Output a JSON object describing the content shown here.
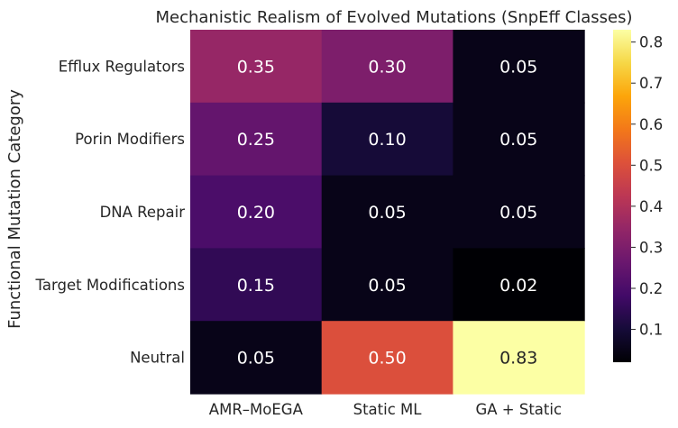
{
  "chart_data": {
    "type": "heatmap",
    "title": "Mechanistic Realism of Evolved Mutations (SnpEff Classes)",
    "xlabel": "",
    "ylabel": "Functional Mutation Category",
    "columns": [
      "AMR–MoEGA",
      "Static ML",
      "GA + Static"
    ],
    "rows": [
      "Efflux Regulators",
      "Porin Modifiers",
      "DNA Repair",
      "Target Modifications",
      "Neutral"
    ],
    "values": [
      [
        0.35,
        0.3,
        0.05
      ],
      [
        0.25,
        0.1,
        0.05
      ],
      [
        0.2,
        0.05,
        0.05
      ],
      [
        0.15,
        0.05,
        0.02
      ],
      [
        0.05,
        0.5,
        0.83
      ]
    ],
    "value_labels": [
      [
        "0.35",
        "0.30",
        "0.05"
      ],
      [
        "0.25",
        "0.10",
        "0.05"
      ],
      [
        "0.20",
        "0.05",
        "0.05"
      ],
      [
        "0.15",
        "0.05",
        "0.02"
      ],
      [
        "0.05",
        "0.50",
        "0.83"
      ]
    ],
    "colormap": "inferno",
    "colorbar": {
      "range": [
        0.02,
        0.83
      ],
      "ticks": [
        0.1,
        0.2,
        0.3,
        0.4,
        0.5,
        0.6,
        0.7,
        0.8
      ],
      "tick_labels": [
        "0.1",
        "0.2",
        "0.3",
        "0.4",
        "0.5",
        "0.6",
        "0.7",
        "0.8"
      ]
    }
  }
}
